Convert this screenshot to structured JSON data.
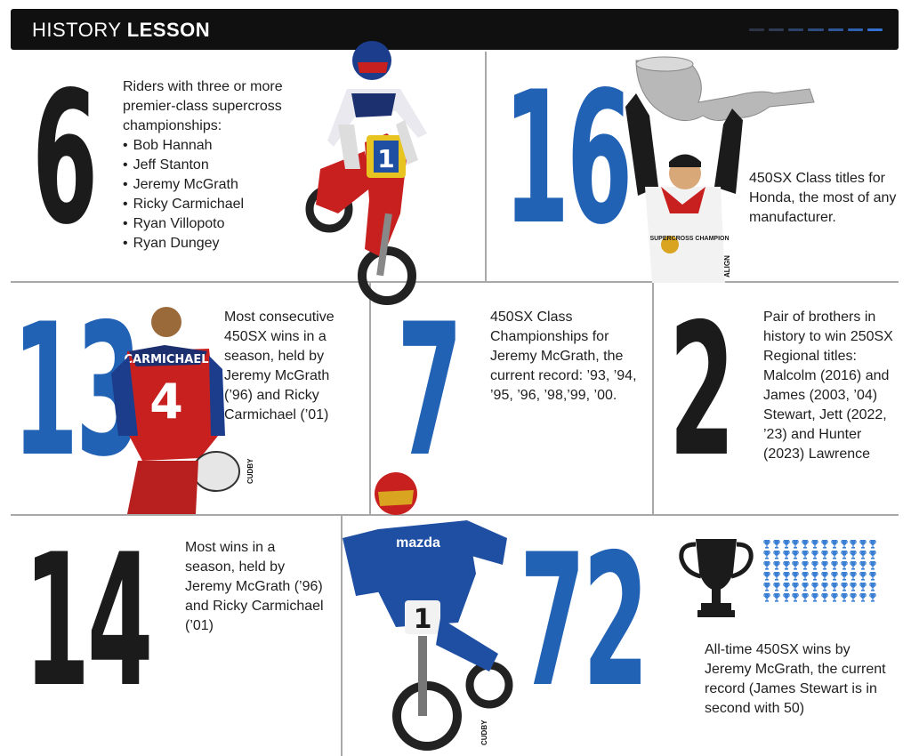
{
  "header": {
    "title_light": "HISTORY ",
    "title_bold": "LESSON",
    "dash_colors": [
      "#2c3446",
      "#2f3b55",
      "#2d4268",
      "#2f4c80",
      "#2f5698",
      "#2f60b0",
      "#3370cf"
    ]
  },
  "colors": {
    "accent_blue": "#2262b5",
    "ink": "#1b1b1b",
    "rule": "#a8a8a8"
  },
  "facts": {
    "f6": {
      "number": "6",
      "text": "Riders with three or more premier-class supercross championships:",
      "riders": [
        "Bob Hannah",
        "Jeff Stanton",
        "Jeremy McGrath",
        "Ricky Carmichael",
        "Ryan Villopoto",
        "Ryan Dungey"
      ]
    },
    "f16": {
      "number": "16",
      "text": "450SX Class titles for Honda, the most of any manufacturer.",
      "credit": "ALIGN"
    },
    "f13": {
      "number": "13",
      "text": "Most consecutive 450SX wins in a season, held by Jeremy McGrath (’96) and Ricky Carmichael (’01)",
      "credit": "CUDBY"
    },
    "f7": {
      "number": "7",
      "text": "450SX Class Championships for Jeremy McGrath, the current record: ’93, ’94, ’95, ’96, ’98,’99, ’00."
    },
    "f2": {
      "number": "2",
      "text": "Pair of brothers in history to win 250SX Regional titles: Malcolm (2016) and James (2003, ’04) Stewart, Jett (2022, ’23) and Hunter (2023) Lawrence"
    },
    "f14": {
      "number": "14",
      "text": "Most wins in a season, held by Jeremy McGrath (’96) and Ricky Carmichael (’01)"
    },
    "f72": {
      "number": "72",
      "text": "All-time 450SX wins by Jeremy McGrath, the current record (James Stewart is in second with 50)",
      "credit": "CUDBY",
      "trophy_count": 72
    }
  },
  "photo_text": {
    "bike_plate": "1",
    "jersey_name": "CARMICHAEL",
    "jersey_number": "4",
    "sponsor": "mazda",
    "shirt_text": "SUPERCROSS CHAMPION"
  },
  "icons": [
    "trophy-icon",
    "mini-trophy-icon"
  ]
}
